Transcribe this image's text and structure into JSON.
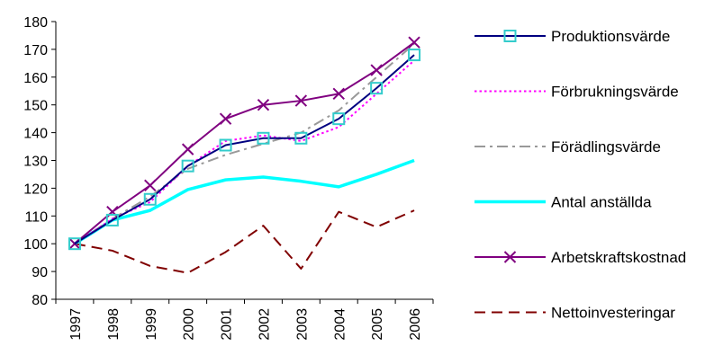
{
  "chart_data": {
    "type": "line",
    "title": "",
    "xlabel": "",
    "ylabel": "",
    "categories": [
      "1997",
      "1998",
      "1999",
      "2000",
      "2001",
      "2002",
      "2003",
      "2004",
      "2005",
      "2006"
    ],
    "ylim": [
      80,
      180
    ],
    "yticks": [
      80,
      90,
      100,
      110,
      120,
      130,
      140,
      150,
      160,
      170,
      180
    ],
    "grid": false,
    "legend_position": "right",
    "series": [
      {
        "name": "Produktionsvärde",
        "color": "#000080",
        "style": "solid",
        "marker": "square",
        "values": [
          100,
          108.5,
          116,
          128,
          135.5,
          138,
          138,
          145,
          156,
          168
        ]
      },
      {
        "name": "Förbrukningsvärde",
        "color": "#ff00ff",
        "style": "dotted",
        "marker": "none",
        "values": [
          100,
          109,
          115,
          128,
          137,
          139,
          137,
          142,
          154,
          166
        ]
      },
      {
        "name": "Förädlingsvärde",
        "color": "#999999",
        "style": "dashdot",
        "marker": "none",
        "values": [
          100,
          109,
          117,
          127,
          132,
          136,
          140,
          148,
          160,
          172
        ]
      },
      {
        "name": "Antal anställda",
        "color": "#00ffff",
        "style": "thick",
        "marker": "none",
        "values": [
          100,
          108.5,
          112,
          119.5,
          123,
          124,
          122.5,
          120.5,
          125,
          130
        ]
      },
      {
        "name": "Arbetskraftskostnad",
        "color": "#800080",
        "style": "solid",
        "marker": "x",
        "values": [
          100,
          111.5,
          121,
          134,
          145,
          150,
          151.5,
          154,
          162.5,
          172.5
        ]
      },
      {
        "name": "Nettoinvesteringar",
        "color": "#800000",
        "style": "dashed",
        "marker": "none",
        "values": [
          100,
          97.5,
          92,
          89.5,
          97,
          106.5,
          91,
          111.5,
          106,
          112
        ]
      }
    ]
  }
}
